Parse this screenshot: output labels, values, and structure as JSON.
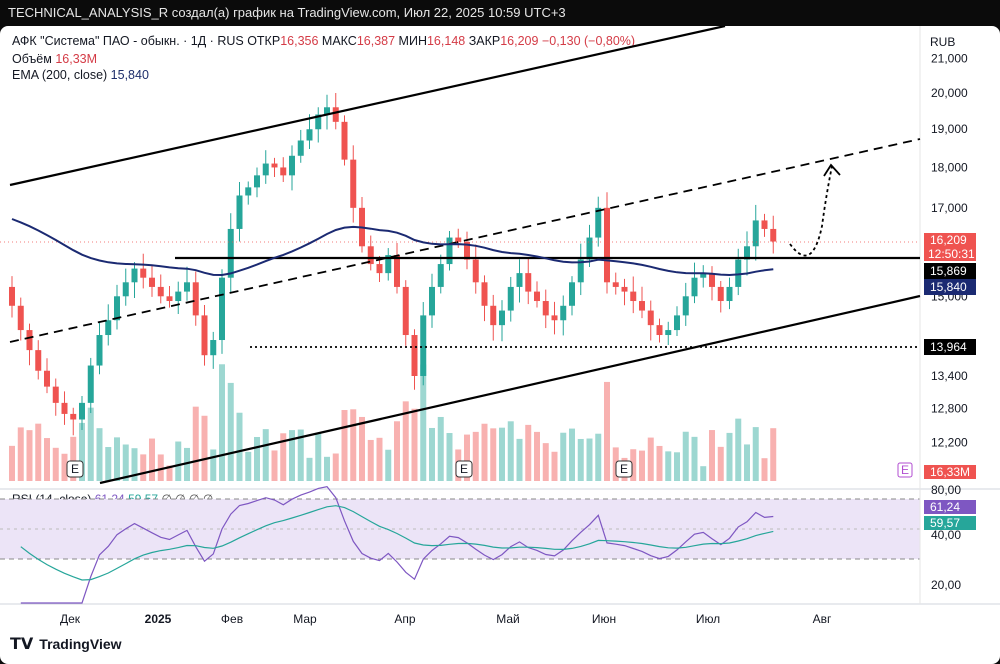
{
  "header": {
    "caption": "TECHNICAL_ANALYSIS_R создал(а) график на TradingView.com, Июл 22, 2025 10:59 UTC+3"
  },
  "legend": {
    "symbol": "АФК \"Система\" ПАО - обыкн. · 1Д · RUS",
    "open_label": "ОТКР",
    "open": "16,356",
    "high_label": "МАКС",
    "high": "16,387",
    "low_label": "МИН",
    "low": "16,148",
    "close_label": "ЗАКР",
    "close": "16,209",
    "change": "−0,130 (−0,80%)",
    "volume_label": "Объём",
    "volume": "16,33M",
    "ema_label": "EMA (200, close)",
    "ema": "15,840",
    "rsi_label": "RSI (14, close)",
    "rsi": "61,24",
    "rsi_ma": "59,57",
    "rsi_extra": "∅ ∅ ∅ ∅"
  },
  "currency": "RUB",
  "colors": {
    "up": "#26a69a",
    "down": "#ef5350",
    "ema": "#1b2a72",
    "rsi": "#7e57c2",
    "rsi_ma": "#26a69a",
    "price_line": "#ef5350"
  },
  "badges": {
    "price": "16,209",
    "countdown": "12:50:31",
    "level_upper": "15,869",
    "ema": "15,840",
    "level_lower": "13,964",
    "volume": "16,33M",
    "volume_icon": "E",
    "rsi": "61,24",
    "rsi_ma": "59,57"
  },
  "earnings_marker": "E",
  "footer": {
    "brand": "TradingView"
  },
  "chart_data": [
    {
      "type": "candlestick",
      "title": "АФК \"Система\" ПАО - обыкн. · 1Д · RUS",
      "y_ticks": [
        "21,000",
        "20,000",
        "19,000",
        "18,000",
        "17,000",
        "16,000",
        "15,000",
        "14,000",
        "13,400",
        "12,800",
        "12,200"
      ],
      "y_tick_values": [
        21000,
        20000,
        19000,
        18000,
        17000,
        16000,
        15000,
        14000,
        13400,
        12800,
        12200
      ],
      "x_ticks": [
        "Дек",
        "2025",
        "Фев",
        "Мар",
        "Апр",
        "Май",
        "Июн",
        "Июл",
        "Авг"
      ],
      "price_scale": "log",
      "ylim": [
        11600,
        21500
      ],
      "last_close": 16209,
      "ema_200_last": 15840,
      "horizontal_levels": [
        15869,
        13964
      ],
      "approx_closes": [
        14800,
        14300,
        13900,
        13500,
        13200,
        12900,
        12700,
        12600,
        12900,
        13600,
        14200,
        14500,
        15000,
        15300,
        15600,
        15400,
        15200,
        15000,
        14900,
        15100,
        15300,
        14600,
        13800,
        14100,
        15400,
        16500,
        17300,
        17500,
        17800,
        18100,
        18000,
        17800,
        18300,
        18700,
        19000,
        19400,
        19600,
        19200,
        18200,
        17000,
        16100,
        15700,
        15500,
        15900,
        15200,
        14200,
        13400,
        14600,
        15200,
        15700,
        16300,
        16200,
        15800,
        15300,
        14800,
        14400,
        14700,
        15200,
        15500,
        15100,
        14900,
        14600,
        14500,
        14800,
        15300,
        15800,
        16300,
        17000,
        15300,
        15200,
        15100,
        14900,
        14700,
        14400,
        14200,
        14300,
        14600,
        15000,
        15400,
        15500,
        15200,
        14900,
        15200,
        15800,
        16100,
        16700,
        16500,
        16209
      ],
      "notes": "Approximate daily closes from Nov 2024 to Jul 22 2025; ascending channel, dashed midline, dotted projection towards ~18,000"
    },
    {
      "type": "line",
      "title": "RSI (14, close)",
      "y_ticks": [
        "80,00",
        "40,00",
        "20,00"
      ],
      "ylim": [
        15,
        85
      ],
      "last_rsi": 61.24,
      "last_rsi_ma": 59.57
    }
  ]
}
